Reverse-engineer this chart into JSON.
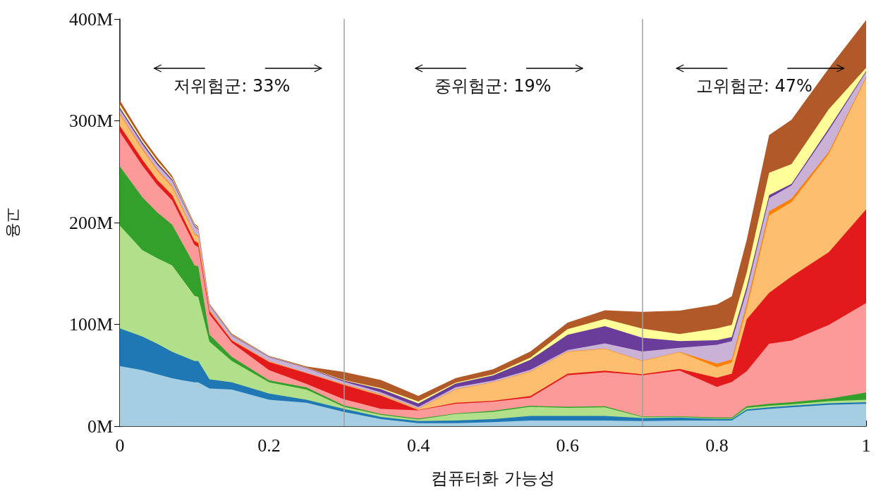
{
  "chart_data": {
    "type": "area",
    "stacked": true,
    "xlabel": "컴퓨터화 가능성",
    "ylabel": "고용",
    "annotations": [
      "저위험군: 33%",
      "중위험군: 19%",
      "고위험군: 47%"
    ],
    "x": [
      0,
      0.03,
      0.05,
      0.07,
      0.1,
      0.105,
      0.12,
      0.15,
      0.2,
      0.25,
      0.3,
      0.35,
      0.4,
      0.45,
      0.5,
      0.55,
      0.6,
      0.65,
      0.7,
      0.75,
      0.8,
      0.82,
      0.84,
      0.87,
      0.9,
      0.95,
      1
    ],
    "series": [
      {
        "color": "#a6cee3",
        "values": [
          59,
          55,
          51,
          47,
          43,
          43,
          37,
          36,
          26,
          23,
          14,
          7,
          3,
          3,
          4,
          5.5,
          5.5,
          5.5,
          5,
          5.5,
          5.5,
          5.5,
          15,
          17,
          18.5,
          21,
          22
        ]
      },
      {
        "color": "#1f78b4",
        "values": [
          37,
          33,
          30,
          26,
          21,
          21,
          9,
          7,
          6,
          3,
          3,
          2,
          2,
          2.5,
          3,
          4.5,
          4.5,
          4.5,
          3,
          3,
          1.5,
          1.5,
          1.5,
          1.5,
          1.5,
          1.5,
          1.5
        ]
      },
      {
        "color": "#b2df8a",
        "values": [
          101,
          85,
          84,
          85,
          64,
          63,
          37,
          21,
          11,
          10,
          2,
          2,
          1.5,
          6.5,
          7,
          9,
          8,
          8.5,
          1,
          0.7,
          0.5,
          0.5,
          1.5,
          1.5,
          1.5,
          2,
          2.5
        ]
      },
      {
        "color": "#33a02c",
        "values": [
          58,
          52,
          45,
          40,
          30,
          30,
          7,
          4,
          2,
          2,
          1.5,
          1,
          1,
          0.5,
          1,
          1,
          1,
          1,
          0.5,
          0.5,
          1,
          1,
          1.5,
          2,
          2,
          2.5,
          7
        ]
      },
      {
        "color": "#fb9a99",
        "values": [
          34,
          31,
          27,
          24,
          20,
          19,
          20,
          14,
          10,
          3.5,
          6,
          5,
          8,
          9.5,
          9,
          8,
          31,
          33.5,
          40.5,
          45,
          30,
          35,
          34.5,
          59,
          60.5,
          72.5,
          88
        ]
      },
      {
        "color": "#e31a1c",
        "values": [
          6,
          6,
          5,
          5,
          4,
          4,
          3,
          2,
          8,
          10.5,
          14,
          13,
          0.5,
          1,
          1,
          1.5,
          1.5,
          1.5,
          1,
          1.5,
          9,
          8,
          51,
          50,
          63,
          71.5,
          92
        ]
      },
      {
        "color": "#fdbf6f",
        "values": [
          11,
          10,
          9,
          8,
          6,
          6,
          1,
          0.5,
          0.5,
          0.3,
          0.5,
          1,
          1,
          13,
          18,
          24,
          21.5,
          21.5,
          13,
          16.5,
          10.5,
          11,
          11,
          76,
          73,
          96.5,
          129
        ]
      },
      {
        "color": "#ff7f00",
        "values": [
          1,
          1,
          1,
          1,
          1,
          1,
          0.5,
          0.3,
          0.3,
          0.2,
          0.3,
          0.3,
          0.3,
          0.3,
          0.3,
          0.3,
          0.3,
          0.3,
          0.3,
          0.3,
          3.5,
          3,
          4,
          4,
          3.5,
          2,
          1
        ]
      },
      {
        "color": "#cab2d6",
        "values": [
          4,
          4,
          5,
          5,
          7,
          6,
          4,
          4,
          4,
          4.5,
          2.5,
          2,
          1.5,
          2,
          1.5,
          1.5,
          1.5,
          5,
          9,
          4,
          18.5,
          18,
          13,
          13,
          13,
          21,
          5
        ]
      },
      {
        "color": "#6a3d9a",
        "values": [
          2,
          2,
          2,
          1.5,
          1,
          1,
          0.5,
          0.5,
          0.5,
          0.3,
          1,
          3,
          3.5,
          3.5,
          5,
          10,
          15,
          17,
          13.5,
          6.5,
          4.5,
          4,
          4,
          3,
          1.5,
          2,
          1
        ]
      },
      {
        "color": "#ffff99",
        "values": [
          3,
          2,
          2,
          1.5,
          1,
          1,
          0.5,
          0.5,
          0.3,
          0.3,
          0.5,
          1,
          2,
          1,
          1,
          2,
          5.5,
          7,
          9,
          7,
          11.5,
          12,
          14,
          22,
          19.5,
          19,
          3
        ]
      },
      {
        "color": "#b15928",
        "values": [
          4,
          3,
          3,
          2,
          1,
          1,
          1,
          1,
          0.5,
          1,
          8,
          8,
          5.5,
          4.5,
          5,
          6,
          6.5,
          8.5,
          16.5,
          23,
          23.5,
          28,
          32,
          37,
          43.5,
          40,
          47
        ]
      }
    ],
    "xlim": [
      0,
      1
    ],
    "xticks": [
      0,
      0.2,
      0.4,
      0.6,
      0.8,
      1
    ],
    "ylim": [
      0,
      400
    ],
    "yticks": [
      {
        "value": 0,
        "label": "0M"
      },
      {
        "value": 100,
        "label": "100M"
      },
      {
        "value": 200,
        "label": "200M"
      },
      {
        "value": 300,
        "label": "300M"
      },
      {
        "value": 400,
        "label": "400M"
      }
    ],
    "ref_lines": [
      {
        "axis": "x",
        "value": 0.3,
        "color": "#a0a0a0"
      },
      {
        "axis": "x",
        "value": 0.7,
        "color": "#a0a0a0"
      }
    ],
    "grid": false,
    "marker": "none"
  }
}
